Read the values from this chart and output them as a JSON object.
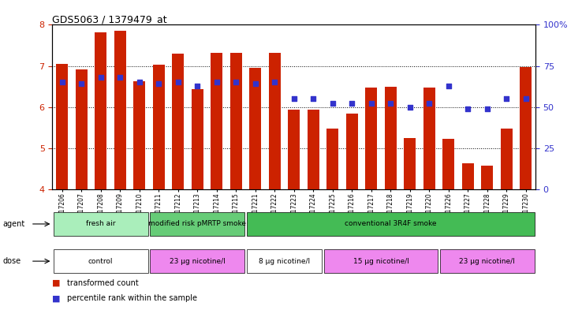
{
  "title": "GDS5063 / 1379479_at",
  "samples": [
    "GSM1217206",
    "GSM1217207",
    "GSM1217208",
    "GSM1217209",
    "GSM1217210",
    "GSM1217211",
    "GSM1217212",
    "GSM1217213",
    "GSM1217214",
    "GSM1217215",
    "GSM1217221",
    "GSM1217222",
    "GSM1217223",
    "GSM1217224",
    "GSM1217225",
    "GSM1217216",
    "GSM1217217",
    "GSM1217218",
    "GSM1217219",
    "GSM1217220",
    "GSM1217226",
    "GSM1217227",
    "GSM1217228",
    "GSM1217229",
    "GSM1217230"
  ],
  "bar_values": [
    7.05,
    6.92,
    7.82,
    7.86,
    6.62,
    7.02,
    7.3,
    6.44,
    7.32,
    7.32,
    6.96,
    7.32,
    5.93,
    5.93,
    5.48,
    5.83,
    6.48,
    6.5,
    5.25,
    6.47,
    5.23,
    4.62,
    4.57,
    5.47,
    6.97
  ],
  "percentile_values": [
    65,
    64,
    68,
    68,
    65,
    64,
    65,
    63,
    65,
    65,
    64,
    65,
    55,
    55,
    52,
    52,
    52,
    52,
    50,
    52,
    63,
    49,
    49,
    55,
    55
  ],
  "bar_color": "#cc2200",
  "dot_color": "#3333cc",
  "ymin": 4,
  "ymax": 8,
  "yticks": [
    4,
    5,
    6,
    7,
    8
  ],
  "y2min": 0,
  "y2max": 100,
  "y2ticks": [
    0,
    25,
    50,
    75,
    100
  ],
  "agent_groups": [
    {
      "label": "fresh air",
      "start": 0,
      "end": 5,
      "color": "#aaeebb"
    },
    {
      "label": "modified risk pMRTP smoke",
      "start": 5,
      "end": 10,
      "color": "#66cc77"
    },
    {
      "label": "conventional 3R4F smoke",
      "start": 10,
      "end": 25,
      "color": "#44bb55"
    }
  ],
  "dose_groups": [
    {
      "label": "control",
      "start": 0,
      "end": 5,
      "color": "#ffffff"
    },
    {
      "label": "23 μg nicotine/l",
      "start": 5,
      "end": 10,
      "color": "#ee88ee"
    },
    {
      "label": "8 μg nicotine/l",
      "start": 10,
      "end": 14,
      "color": "#ffffff"
    },
    {
      "label": "15 μg nicotine/l",
      "start": 14,
      "end": 20,
      "color": "#ee88ee"
    },
    {
      "label": "23 μg nicotine/l",
      "start": 20,
      "end": 25,
      "color": "#ee88ee"
    }
  ],
  "agent_label": "agent",
  "dose_label": "dose",
  "legend_items": [
    {
      "label": "transformed count",
      "color": "#cc2200"
    },
    {
      "label": "percentile rank within the sample",
      "color": "#3333cc"
    }
  ]
}
